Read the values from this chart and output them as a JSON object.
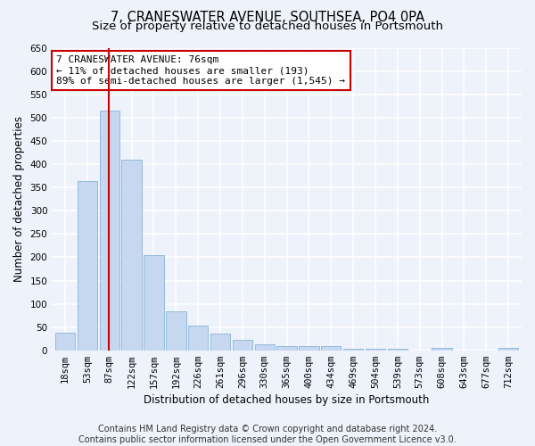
{
  "title": "7, CRANESWATER AVENUE, SOUTHSEA, PO4 0PA",
  "subtitle": "Size of property relative to detached houses in Portsmouth",
  "xlabel": "Distribution of detached houses by size in Portsmouth",
  "ylabel": "Number of detached properties",
  "bar_labels": [
    "18sqm",
    "53sqm",
    "87sqm",
    "122sqm",
    "157sqm",
    "192sqm",
    "226sqm",
    "261sqm",
    "296sqm",
    "330sqm",
    "365sqm",
    "400sqm",
    "434sqm",
    "469sqm",
    "504sqm",
    "539sqm",
    "573sqm",
    "608sqm",
    "643sqm",
    "677sqm",
    "712sqm"
  ],
  "bar_values": [
    38,
    365,
    515,
    410,
    205,
    84,
    54,
    35,
    22,
    12,
    9,
    9,
    9,
    3,
    3,
    3,
    0,
    6,
    0,
    0,
    6
  ],
  "bar_color": "#c5d8f0",
  "bar_edge_color": "#8ab4d8",
  "vline_x_index": 1.97,
  "vline_color": "#cc0000",
  "annotation_text": "7 CRANESWATER AVENUE: 76sqm\n← 11% of detached houses are smaller (193)\n89% of semi-detached houses are larger (1,545) →",
  "annotation_box_color": "#ffffff",
  "annotation_box_edge": "#cc0000",
  "ylim": [
    0,
    650
  ],
  "yticks": [
    0,
    50,
    100,
    150,
    200,
    250,
    300,
    350,
    400,
    450,
    500,
    550,
    600,
    650
  ],
  "footer1": "Contains HM Land Registry data © Crown copyright and database right 2024.",
  "footer2": "Contains public sector information licensed under the Open Government Licence v3.0.",
  "bg_color": "#eef2fb",
  "plot_bg_color": "#eef2fb",
  "grid_color": "#ffffff",
  "title_fontsize": 10.5,
  "subtitle_fontsize": 9.5,
  "axis_label_fontsize": 8.5,
  "tick_fontsize": 7.5,
  "annotation_fontsize": 8,
  "footer_fontsize": 7
}
